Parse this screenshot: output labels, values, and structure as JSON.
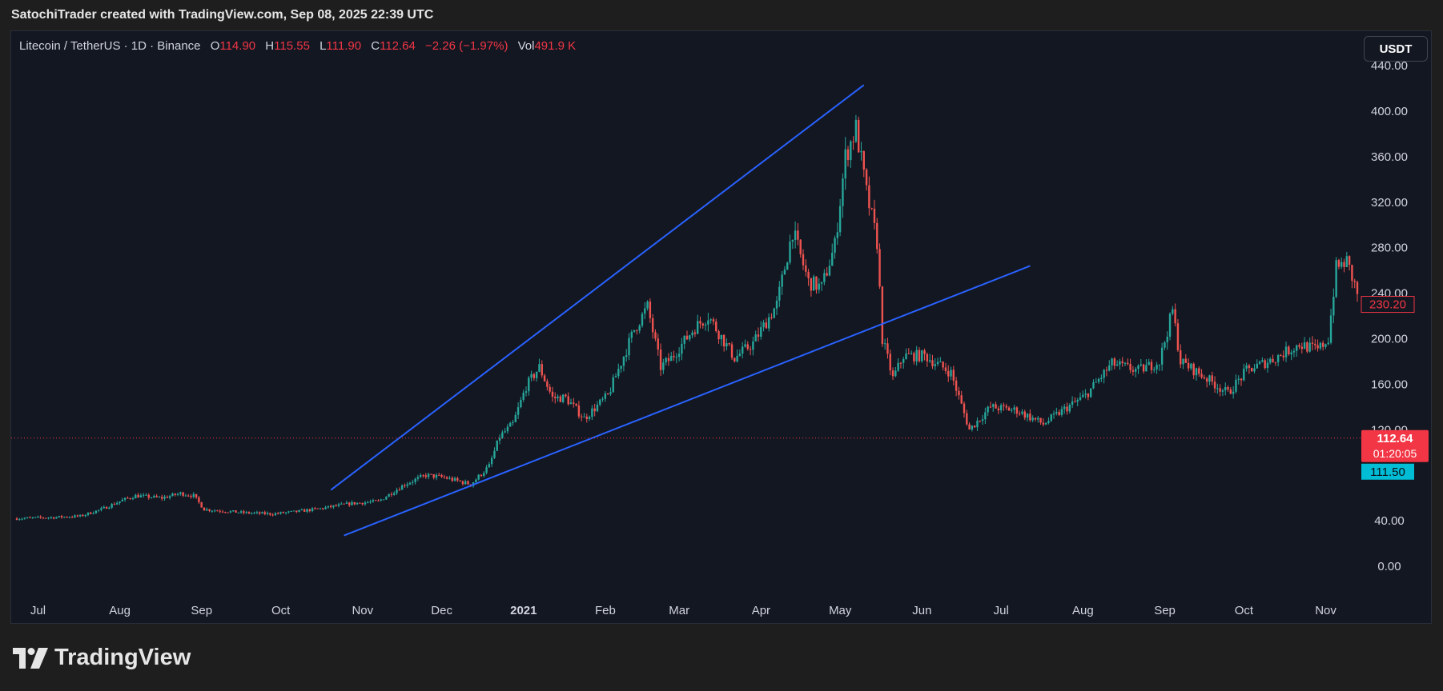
{
  "header": {
    "attribution": "SatochiTrader created with TradingView.com, Sep 08, 2025 22:39 UTC"
  },
  "legend": {
    "symbol": "Litecoin / TetherUS · 1D · Binance",
    "open_label": "O",
    "open": "114.90",
    "high_label": "H",
    "high": "115.55",
    "low_label": "L",
    "low": "111.90",
    "close_label": "C",
    "close": "112.64",
    "change": "−2.26 (−1.97%)",
    "vol_label": "Vol",
    "vol": "491.9 K"
  },
  "currency_button": "USDT",
  "brand": {
    "name": "TradingView"
  },
  "colors": {
    "background": "#131722",
    "up": "#26a69a",
    "down": "#ef5350",
    "trendline": "#2962ff",
    "price_line": "#f23645",
    "cyan_badge": "#00bcd4"
  },
  "chart_data": {
    "type": "candlestick",
    "title": "Litecoin / TetherUS · 1D · Binance",
    "y_ticks": [
      "440.00",
      "400.00",
      "360.00",
      "320.00",
      "280.00",
      "240.00",
      "200.00",
      "160.00",
      "120.00",
      "40.00",
      "0.00"
    ],
    "y_tick_values": [
      440,
      400,
      360,
      320,
      280,
      240,
      200,
      160,
      120,
      40,
      0
    ],
    "x_ticks": [
      "Jul",
      "Aug",
      "Sep",
      "Oct",
      "Nov",
      "Dec",
      "2021",
      "Feb",
      "Mar",
      "Apr",
      "May",
      "Jun",
      "Jul",
      "Aug",
      "Sep",
      "Oct",
      "Nov"
    ],
    "x_tick_dates": [
      "2020-07-01",
      "2020-08-01",
      "2020-09-01",
      "2020-10-01",
      "2020-11-01",
      "2020-12-01",
      "2021-01-01",
      "2021-02-01",
      "2021-03-01",
      "2021-04-01",
      "2021-05-01",
      "2021-06-01",
      "2021-07-01",
      "2021-08-01",
      "2021-09-01",
      "2021-10-01",
      "2021-11-01"
    ],
    "x_range": [
      "2020-06-26",
      "2021-11-16"
    ],
    "y_range": [
      -20,
      440
    ],
    "series_close": [
      [
        "2020-06-26",
        42
      ],
      [
        "2020-07-10",
        43
      ],
      [
        "2020-07-20",
        44
      ],
      [
        "2020-07-28",
        50
      ],
      [
        "2020-08-05",
        58
      ],
      [
        "2020-08-10",
        62
      ],
      [
        "2020-08-20",
        60
      ],
      [
        "2020-08-27",
        64
      ],
      [
        "2020-09-01",
        62
      ],
      [
        "2020-09-05",
        50
      ],
      [
        "2020-09-20",
        47
      ],
      [
        "2020-10-01",
        46
      ],
      [
        "2020-10-10",
        48
      ],
      [
        "2020-10-20",
        51
      ],
      [
        "2020-10-30",
        55
      ],
      [
        "2020-11-10",
        57
      ],
      [
        "2020-11-20",
        72
      ],
      [
        "2020-11-28",
        80
      ],
      [
        "2020-12-05",
        78
      ],
      [
        "2020-12-15",
        72
      ],
      [
        "2020-12-22",
        88
      ],
      [
        "2020-12-26",
        114
      ],
      [
        "2020-12-31",
        125
      ],
      [
        "2021-01-05",
        158
      ],
      [
        "2021-01-10",
        175
      ],
      [
        "2021-01-15",
        148
      ],
      [
        "2021-01-20",
        148
      ],
      [
        "2021-01-27",
        130
      ],
      [
        "2021-02-05",
        150
      ],
      [
        "2021-02-15",
        208
      ],
      [
        "2021-02-20",
        228
      ],
      [
        "2021-02-25",
        175
      ],
      [
        "2021-03-01",
        183
      ],
      [
        "2021-03-10",
        210
      ],
      [
        "2021-03-15",
        220
      ],
      [
        "2021-03-25",
        183
      ],
      [
        "2021-04-01",
        196
      ],
      [
        "2021-04-10",
        230
      ],
      [
        "2021-04-16",
        295
      ],
      [
        "2021-04-22",
        250
      ],
      [
        "2021-04-27",
        245
      ],
      [
        "2021-05-02",
        282
      ],
      [
        "2021-05-06",
        360
      ],
      [
        "2021-05-10",
        385
      ],
      [
        "2021-05-14",
        328
      ],
      [
        "2021-05-18",
        285
      ],
      [
        "2021-05-20",
        200
      ],
      [
        "2021-05-24",
        165
      ],
      [
        "2021-05-28",
        185
      ],
      [
        "2021-06-05",
        185
      ],
      [
        "2021-06-15",
        170
      ],
      [
        "2021-06-22",
        120
      ],
      [
        "2021-06-30",
        140
      ],
      [
        "2021-07-10",
        137
      ],
      [
        "2021-07-20",
        125
      ],
      [
        "2021-07-28",
        138
      ],
      [
        "2021-08-05",
        150
      ],
      [
        "2021-08-15",
        178
      ],
      [
        "2021-08-25",
        172
      ],
      [
        "2021-09-02",
        180
      ],
      [
        "2021-09-07",
        225
      ],
      [
        "2021-09-10",
        180
      ],
      [
        "2021-09-20",
        165
      ],
      [
        "2021-09-28",
        152
      ],
      [
        "2021-10-05",
        172
      ],
      [
        "2021-10-15",
        182
      ],
      [
        "2021-10-25",
        195
      ],
      [
        "2021-11-01",
        190
      ],
      [
        "2021-11-05",
        200
      ],
      [
        "2021-11-08",
        262
      ],
      [
        "2021-11-12",
        268
      ],
      [
        "2021-11-16",
        240
      ]
    ],
    "trendlines": [
      {
        "from": [
          "2020-10-23",
          67
        ],
        "to": [
          "2021-05-13",
          423
        ]
      },
      {
        "from": [
          "2020-10-28",
          27
        ],
        "to": [
          "2021-07-15",
          264
        ]
      }
    ],
    "price_line": {
      "value": 112.64,
      "label": "112.64",
      "countdown": "01:20:05"
    },
    "price_labels": [
      {
        "value": 230.2,
        "label": "230.20"
      },
      {
        "value": 111.5,
        "label": "111.50"
      }
    ]
  }
}
